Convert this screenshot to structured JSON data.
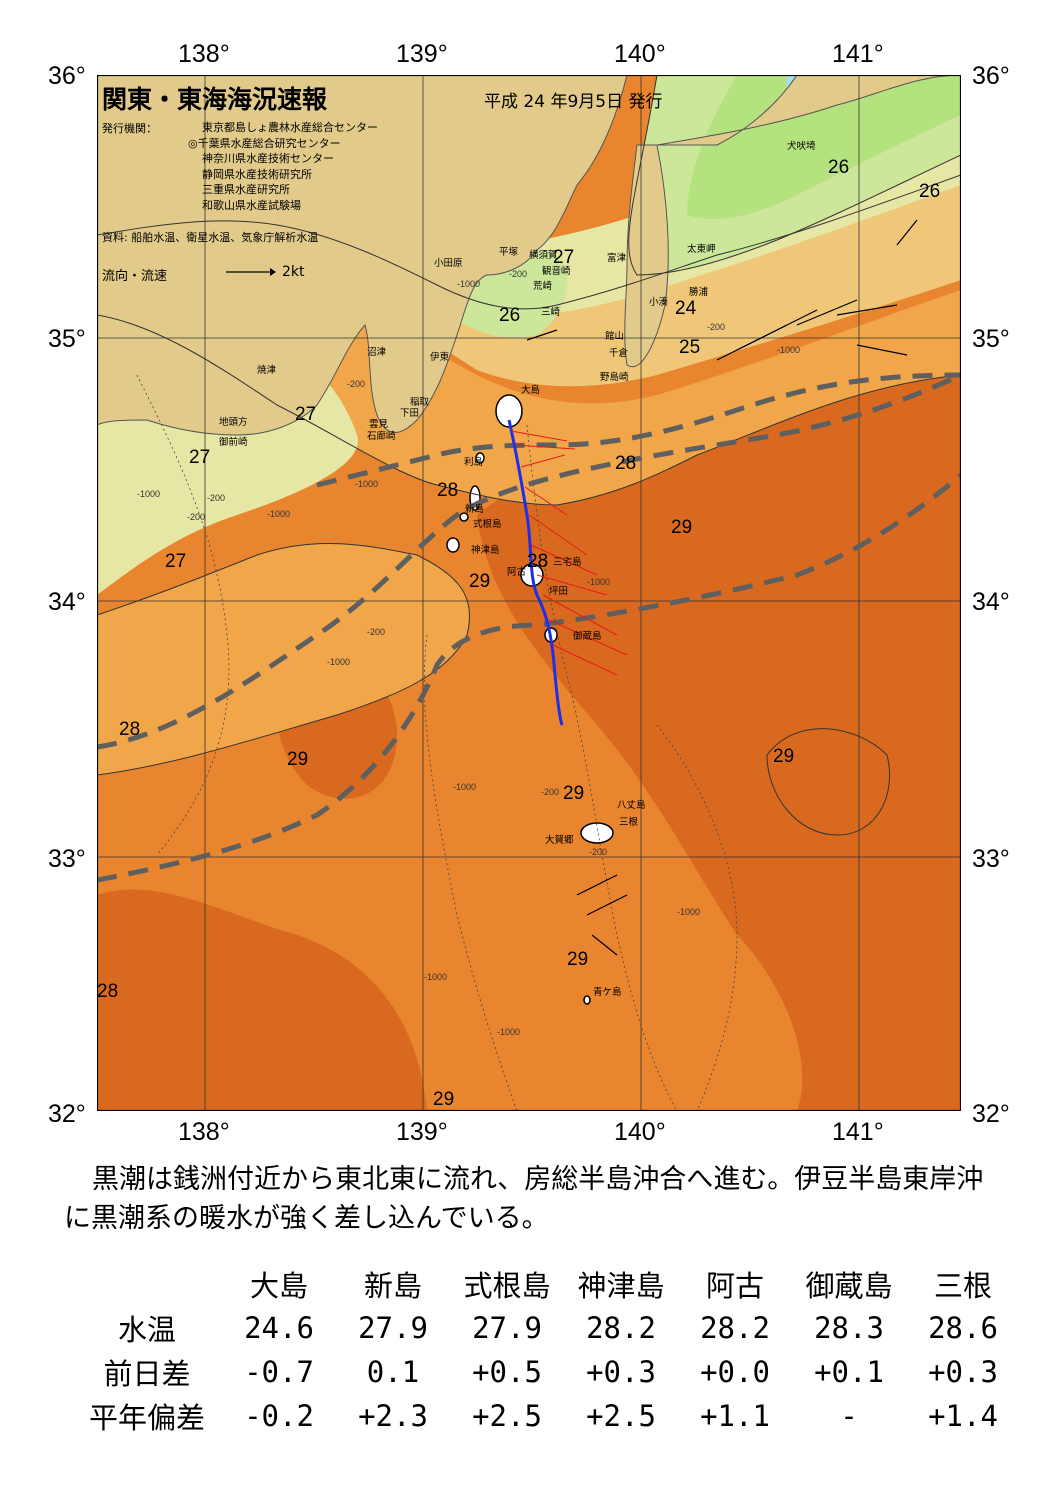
{
  "map": {
    "title": "関東・東海海況速報",
    "issue_date": "平成 24 年9月5日 発行",
    "issuer_label": "発行機関：",
    "issuers": [
      "東京都島しょ農林水産総合センター",
      "◎千葉県水産総合研究センター",
      "神奈川県水産技術センター",
      "静岡県水産技術研究所",
      "三重県水産研究所",
      "和歌山県水産試験場"
    ],
    "source": "資料: 船舶水温、衛星水温、気象庁解析水温",
    "current_legend_label": "流向・流速",
    "current_legend_scale": "2kt",
    "lon_labels": [
      "138°",
      "139°",
      "140°",
      "141°"
    ],
    "lat_labels": [
      "36°",
      "35°",
      "34°",
      "33°",
      "32°"
    ],
    "colors": {
      "temp_24_25": "#b4e27e",
      "temp_25_26": "#cde79a",
      "temp_26_27": "#e6e7a4",
      "temp_27_28": "#f0c779",
      "temp_28_29": "#f1a64a",
      "temp_29_30": "#e9852e",
      "temp_30plus": "#d8691f",
      "land": "#e2cb8a",
      "kuroshio_axis": "#5f5f5f",
      "ship_track": "#1f2ee8",
      "current_vectors_ship": "#e81b1b",
      "current_vectors_buoy": "#000000"
    },
    "temperature_labels": [
      "26",
      "26",
      "27",
      "26",
      "24",
      "25",
      "27",
      "27",
      "28",
      "28",
      "29",
      "27",
      "28",
      "29",
      "28",
      "29",
      "29",
      "29",
      "29",
      "28",
      "29"
    ],
    "depth_labels": [
      "-1000",
      "-200",
      "-1000",
      "-200",
      "-200",
      "-1000",
      "-200",
      "-1000",
      "-1000",
      "-200",
      "-1000",
      "-1000",
      "-1000",
      "-200",
      "-1000",
      "-1000",
      "-200",
      "-1000",
      "-200"
    ],
    "place_names": [
      "犬吠埼",
      "太東岬",
      "勝浦",
      "小湊",
      "富津",
      "館山",
      "千倉",
      "野島崎",
      "横須賀",
      "観音崎",
      "平塚",
      "荒崎",
      "三崎",
      "小田原",
      "沼津",
      "伊東",
      "大島",
      "稲取",
      "下田",
      "雲見",
      "石廊崎",
      "焼津",
      "地頭方",
      "御前崎",
      "利島",
      "新島",
      "式根島",
      "神津島",
      "三宅島",
      "阿古",
      "坪田",
      "御蔵島",
      "八丈島",
      "三根",
      "大賀郷",
      "青ケ島"
    ]
  },
  "summary": "黒潮は銭洲付近から東北東に流れ、房総半島沖合へ進む。伊豆半島東岸沖に黒潮系の暖水が強く差し込んでいる。",
  "table": {
    "columns": [
      "大島",
      "新島",
      "式根島",
      "神津島",
      "阿古",
      "御蔵島",
      "三根"
    ],
    "rows": [
      {
        "label": "水温",
        "values": [
          "24.6",
          "27.9",
          "27.9",
          "28.2",
          "28.2",
          "28.3",
          "28.6"
        ]
      },
      {
        "label": "前日差",
        "values": [
          "-0.7",
          "0.1",
          "+0.5",
          "+0.3",
          "+0.0",
          "+0.1",
          "+0.3"
        ]
      },
      {
        "label": "平年偏差",
        "values": [
          "-0.2",
          "+2.3",
          "+2.5",
          "+2.5",
          "+1.1",
          "-",
          "+1.4"
        ]
      }
    ]
  }
}
